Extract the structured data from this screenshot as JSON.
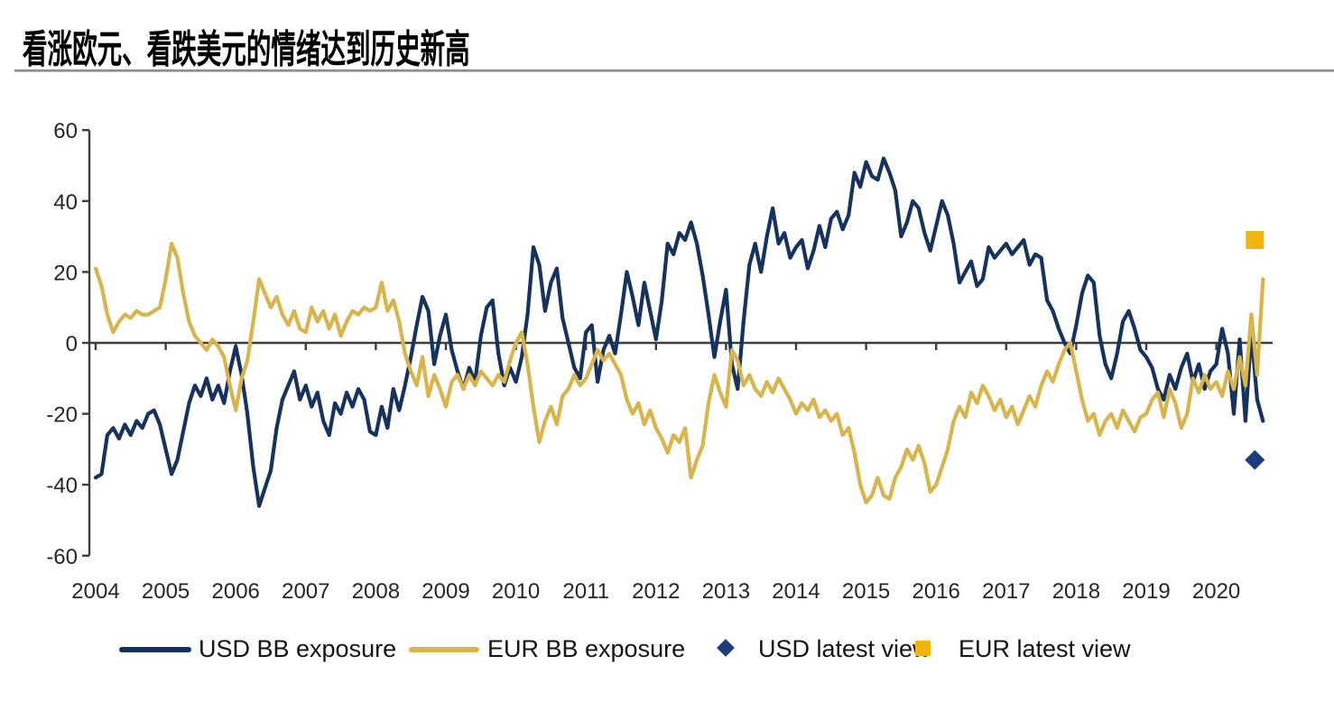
{
  "title": "看涨欧元、看跌美元的情绪达到历史新高",
  "colors": {
    "usd_line": "#16325f",
    "eur_line": "#d8b44a",
    "usd_marker": "#1d3c7c",
    "eur_marker": "#f2b50d",
    "axis": "#3d3d3d",
    "tick_text": "#262626",
    "divider": "#8f9499"
  },
  "chart_data": {
    "type": "line",
    "title": "看涨欧元、看跌美元的情绪达到历史新高",
    "xlabel": "",
    "ylabel": "",
    "x_axis": {
      "ticks": [
        2004,
        2005,
        2006,
        2007,
        2008,
        2009,
        2010,
        2011,
        2012,
        2013,
        2014,
        2015,
        2016,
        2017,
        2018,
        2019,
        2020
      ],
      "range": [
        2003.9,
        2021.1
      ]
    },
    "y_axis": {
      "ticks": [
        60,
        40,
        20,
        0,
        -20,
        -40,
        -60
      ],
      "range": [
        -60,
        60
      ]
    },
    "grid": false,
    "legend_position": "bottom",
    "axis_color": "#3d3d3d",
    "series": [
      {
        "name": "USD BB exposure",
        "color": "#16325f",
        "start": 2004.0,
        "step_years": 0.08333,
        "values": [
          -38,
          -37,
          -26,
          -24,
          -27,
          -23,
          -26,
          -22,
          -24,
          -20,
          -19,
          -23,
          -30,
          -37,
          -33,
          -25,
          -17,
          -12,
          -15,
          -10,
          -16,
          -12,
          -17,
          -8,
          -1,
          -9,
          -20,
          -35,
          -46,
          -41,
          -36,
          -24,
          -16,
          -12,
          -8,
          -16,
          -12,
          -18,
          -14,
          -22,
          -26,
          -17,
          -20,
          -14,
          -18,
          -13,
          -16,
          -25,
          -26,
          -18,
          -24,
          -13,
          -19,
          -12,
          -4,
          5,
          13,
          9,
          -6,
          2,
          8,
          -2,
          -8,
          -13,
          -7,
          -11,
          2,
          10,
          12,
          -3,
          -12,
          -7,
          -11,
          -4,
          8,
          27,
          22,
          9,
          17,
          21,
          7,
          0,
          -7,
          -10,
          3,
          5,
          -11,
          -2,
          2,
          -3,
          8,
          20,
          13,
          5,
          17,
          9,
          1,
          12,
          28,
          25,
          31,
          29,
          34,
          28,
          19,
          8,
          -4,
          6,
          15,
          -6,
          -13,
          6,
          22,
          28,
          20,
          30,
          38,
          28,
          31,
          24,
          27,
          29,
          21,
          26,
          33,
          27,
          35,
          37,
          32,
          36,
          48,
          44,
          51,
          47,
          46,
          52,
          48,
          43,
          30,
          34,
          40,
          38,
          31,
          26,
          33,
          40,
          36,
          28,
          17,
          20,
          23,
          16,
          18,
          27,
          24,
          26,
          28,
          25,
          27,
          29,
          22,
          25,
          24,
          12,
          9,
          4,
          0,
          -3,
          5,
          14,
          19,
          17,
          2,
          -6,
          -10,
          -3,
          6,
          9,
          4,
          -2,
          -4,
          -7,
          -13,
          -16,
          -9,
          -13,
          -7,
          -3,
          -11,
          -6,
          -13,
          -8,
          -6,
          4,
          -3,
          -20,
          1,
          -22,
          3,
          -16,
          -22
        ]
      },
      {
        "name": "EUR BB exposure",
        "color": "#d8b44a",
        "start": 2004.0,
        "step_years": 0.08333,
        "values": [
          21,
          16,
          8,
          3,
          6,
          8,
          7,
          9,
          8,
          8,
          9,
          10,
          18,
          28,
          24,
          14,
          6,
          2,
          0,
          -2,
          1,
          -1,
          -4,
          -12,
          -19,
          -10,
          -5,
          6,
          18,
          14,
          10,
          13,
          8,
          5,
          9,
          4,
          3,
          10,
          6,
          9,
          4,
          8,
          2,
          6,
          9,
          8,
          10,
          9,
          10,
          17,
          9,
          12,
          6,
          -3,
          -8,
          -12,
          -4,
          -15,
          -9,
          -13,
          -18,
          -11,
          -9,
          -13,
          -9,
          -12,
          -8,
          -10,
          -12,
          -9,
          -11,
          -5,
          0,
          3,
          -6,
          -18,
          -28,
          -22,
          -18,
          -23,
          -15,
          -13,
          -9,
          -12,
          -10,
          -6,
          -2,
          -5,
          -3,
          -6,
          -9,
          -16,
          -20,
          -17,
          -23,
          -19,
          -24,
          -27,
          -31,
          -26,
          -28,
          -24,
          -38,
          -33,
          -29,
          -17,
          -9,
          -14,
          -18,
          -2,
          -5,
          -12,
          -9,
          -13,
          -15,
          -11,
          -14,
          -10,
          -13,
          -16,
          -20,
          -17,
          -19,
          -16,
          -21,
          -19,
          -22,
          -20,
          -26,
          -24,
          -31,
          -40,
          -45,
          -43,
          -38,
          -43,
          -44,
          -38,
          -35,
          -30,
          -33,
          -29,
          -34,
          -42,
          -40,
          -35,
          -30,
          -22,
          -18,
          -21,
          -14,
          -17,
          -12,
          -15,
          -19,
          -16,
          -21,
          -18,
          -23,
          -19,
          -15,
          -18,
          -12,
          -8,
          -11,
          -6,
          -2,
          0,
          -8,
          -16,
          -22,
          -20,
          -26,
          -22,
          -20,
          -24,
          -19,
          -22,
          -25,
          -21,
          -20,
          -16,
          -14,
          -21,
          -13,
          -17,
          -24,
          -20,
          -10,
          -14,
          -9,
          -13,
          -11,
          -15,
          -8,
          -13,
          -4,
          -12,
          8,
          -9,
          18
        ]
      }
    ],
    "markers": [
      {
        "name": "USD latest view",
        "shape": "diamond",
        "color": "#1d3c7c",
        "x": 2020.55,
        "value": -33
      },
      {
        "name": "EUR latest view",
        "shape": "square",
        "color": "#f2b50d",
        "x": 2020.55,
        "value": 29
      }
    ]
  }
}
